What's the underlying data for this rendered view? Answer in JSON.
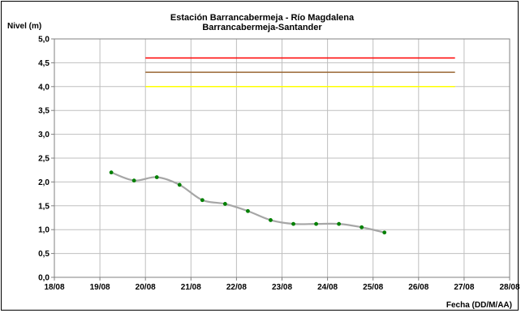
{
  "chart_data": {
    "type": "line",
    "title_line1": "Estación Barrancabermeja - Río Magdalena",
    "title_line2": "Barrancabermeja-Santander",
    "ylabel": "Nivel (m)",
    "xlabel": "Fecha (DD/M/AA)",
    "ylim": [
      0,
      5
    ],
    "xlim": [
      18,
      28
    ],
    "grid": true,
    "y_ticks": [
      {
        "value": 0,
        "label": "0,0"
      },
      {
        "value": 0.5,
        "label": "0,5"
      },
      {
        "value": 1,
        "label": "1,0"
      },
      {
        "value": 1.5,
        "label": "1,5"
      },
      {
        "value": 2,
        "label": "2,0"
      },
      {
        "value": 2.5,
        "label": "2,5"
      },
      {
        "value": 3,
        "label": "3,0"
      },
      {
        "value": 3.5,
        "label": "3,5"
      },
      {
        "value": 4,
        "label": "4,0"
      },
      {
        "value": 4.5,
        "label": "4,5"
      },
      {
        "value": 5,
        "label": "5,0"
      }
    ],
    "x_ticks": [
      {
        "value": 18,
        "label": "18/08"
      },
      {
        "value": 19,
        "label": "19/08"
      },
      {
        "value": 20,
        "label": "20/08"
      },
      {
        "value": 21,
        "label": "21/08"
      },
      {
        "value": 22,
        "label": "22/08"
      },
      {
        "value": 23,
        "label": "23/08"
      },
      {
        "value": 24,
        "label": "24/08"
      },
      {
        "value": 25,
        "label": "25/08"
      },
      {
        "value": 26,
        "label": "26/08"
      },
      {
        "value": 27,
        "label": "27/08"
      },
      {
        "value": 28,
        "label": "28/08"
      }
    ],
    "threshold_lines": [
      {
        "y": 4.6,
        "x_start": 20,
        "x_end": 26.8,
        "color": "#ff0000"
      },
      {
        "y": 4.3,
        "x_start": 20,
        "x_end": 26.8,
        "color": "#996633"
      },
      {
        "y": 4.0,
        "x_start": 20,
        "x_end": 26.8,
        "color": "#ffff00"
      }
    ],
    "series": [
      {
        "line_color": "#a6a6a6",
        "marker_color": "#008000",
        "points": [
          {
            "x": 19.25,
            "y": 2.2
          },
          {
            "x": 19.75,
            "y": 2.03
          },
          {
            "x": 20.25,
            "y": 2.1
          },
          {
            "x": 20.75,
            "y": 1.94
          },
          {
            "x": 21.25,
            "y": 1.62
          },
          {
            "x": 21.75,
            "y": 1.54
          },
          {
            "x": 22.25,
            "y": 1.39
          },
          {
            "x": 22.75,
            "y": 1.2
          },
          {
            "x": 23.25,
            "y": 1.12
          },
          {
            "x": 23.75,
            "y": 1.12
          },
          {
            "x": 24.25,
            "y": 1.12
          },
          {
            "x": 24.75,
            "y": 1.05
          },
          {
            "x": 25.25,
            "y": 0.94
          }
        ]
      }
    ]
  }
}
